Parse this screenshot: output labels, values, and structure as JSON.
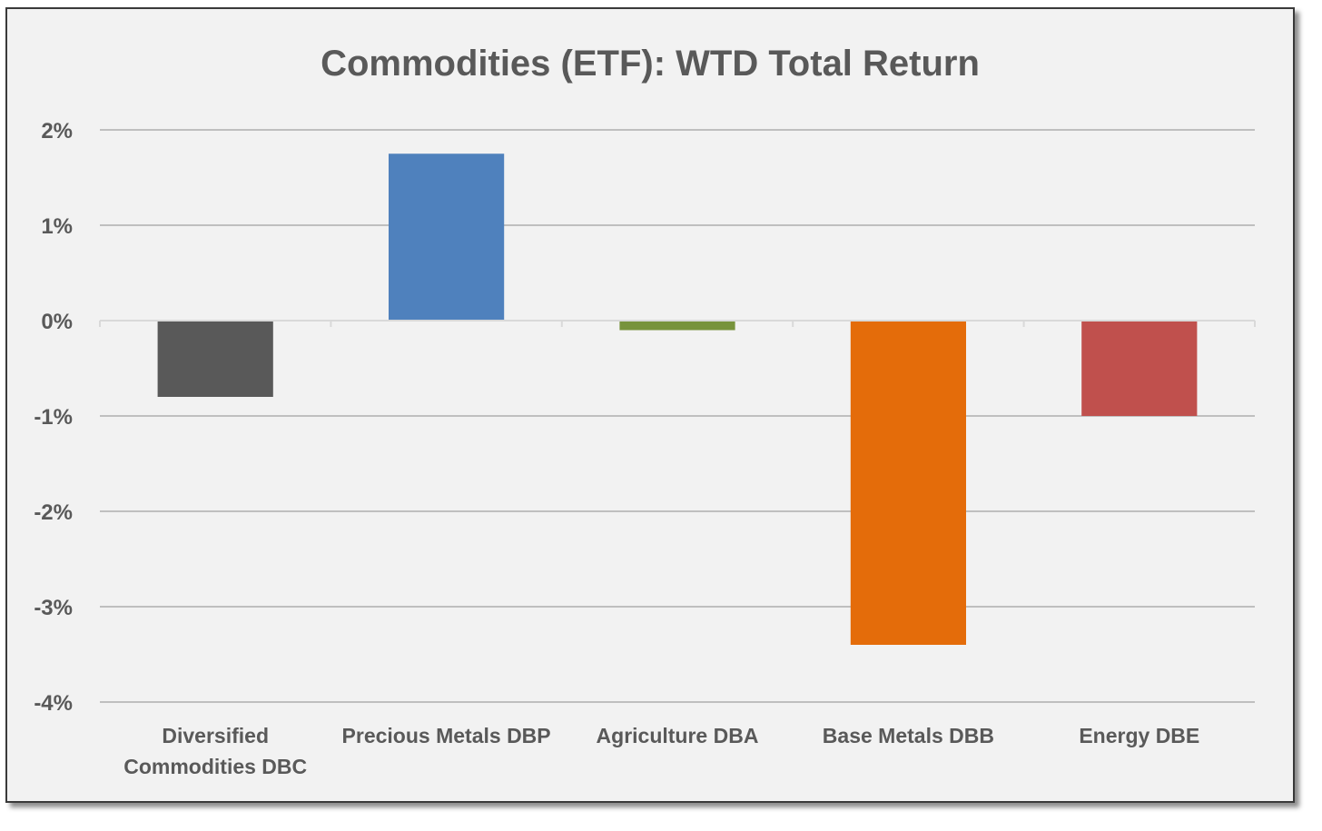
{
  "chart_data": {
    "type": "bar",
    "title": "Commodities (ETF): WTD Total Return",
    "xlabel": "",
    "ylabel": "",
    "categories": [
      [
        "Diversified",
        "Commodities DBC"
      ],
      [
        "Precious Metals DBP"
      ],
      [
        "Agriculture DBA"
      ],
      [
        "Base Metals DBB"
      ],
      [
        "Energy DBE"
      ]
    ],
    "values": [
      -0.8,
      1.75,
      -0.1,
      -3.4,
      -1.0
    ],
    "colors": [
      "#595959",
      "#4f81bd",
      "#77933c",
      "#e46c0a",
      "#c0504d"
    ],
    "ylim": [
      -4,
      2
    ],
    "yticks": [
      2,
      1,
      0,
      -1,
      -2,
      -3,
      -4
    ],
    "ytick_labels": [
      "2%",
      "1%",
      "0%",
      "-1%",
      "-2%",
      "-3%",
      "-4%"
    ],
    "grid": true,
    "legend": "none"
  }
}
